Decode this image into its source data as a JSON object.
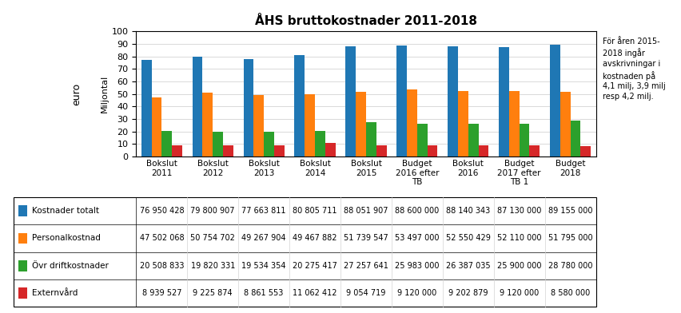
{
  "chart_data": {
    "type": "bar",
    "title": "ÅHS bruttokostnader 2011-2018",
    "ylabel": "Miljontal",
    "ylabel_unit": "euro",
    "annotations": [
      "För åren 2015-\n2018 ingår\navskrivningar i\nkostnaden på\n4,1 milj, 3,9 milj\nresp 4,2 milj."
    ],
    "categories": [
      "Bokslut\n2011",
      "Bokslut\n2012",
      "Bokslut\n2013",
      "Bokslut\n2014",
      "Bokslut\n2015",
      "Budget\n2016 efter\nTB",
      "Bokslut\n2016",
      "Budget\n2017 efter\nTB 1",
      "Budget\n2018"
    ],
    "series": [
      {
        "name": "Kostnader totalt",
        "values": [
          76.950428,
          79.800907,
          77.663811,
          80.805711,
          88.051907,
          88.6,
          88.140343,
          87.13,
          89.155
        ],
        "table_labels": [
          "76 950 428",
          "79 800 907",
          "77 663 811",
          "80 805 711",
          "88 051 907",
          "88 600 000",
          "88 140 343",
          "87 130 000",
          "89 155 000"
        ]
      },
      {
        "name": "Personalkostnad",
        "values": [
          47.502068,
          50.754702,
          49.267904,
          49.467882,
          51.739547,
          53.497,
          52.550429,
          52.11,
          51.795
        ],
        "table_labels": [
          "47 502 068",
          "50 754 702",
          "49 267 904",
          "49 467 882",
          "51 739 547",
          "53 497 000",
          "52 550 429",
          "52 110 000",
          "51 795 000"
        ]
      },
      {
        "name": "Övr driftkostnader",
        "values": [
          20.508833,
          19.820331,
          19.534354,
          20.275417,
          27.257641,
          25.983,
          26.387035,
          25.9,
          28.78
        ],
        "table_labels": [
          "20 508 833",
          "19 820 331",
          "19 534 354",
          "20 275 417",
          "27 257 641",
          "25 983 000",
          "26 387 035",
          "25 900 000",
          "28 780 000"
        ]
      },
      {
        "name": "Externvård",
        "values": [
          8.939527,
          9.225874,
          8.861553,
          11.062412,
          9.054719,
          9.12,
          9.202879,
          9.12,
          8.58
        ],
        "table_labels": [
          "8 939 527",
          "9 225 874",
          "8 861 553",
          "11 062 412",
          "9 054 719",
          "9 120 000",
          "9 202 879",
          "9 120 000",
          "8 580 000"
        ]
      }
    ],
    "ylim": [
      0,
      100
    ],
    "yticks": [
      0,
      10,
      20,
      30,
      40,
      50,
      60,
      70,
      80,
      90,
      100
    ],
    "grid": true
  }
}
